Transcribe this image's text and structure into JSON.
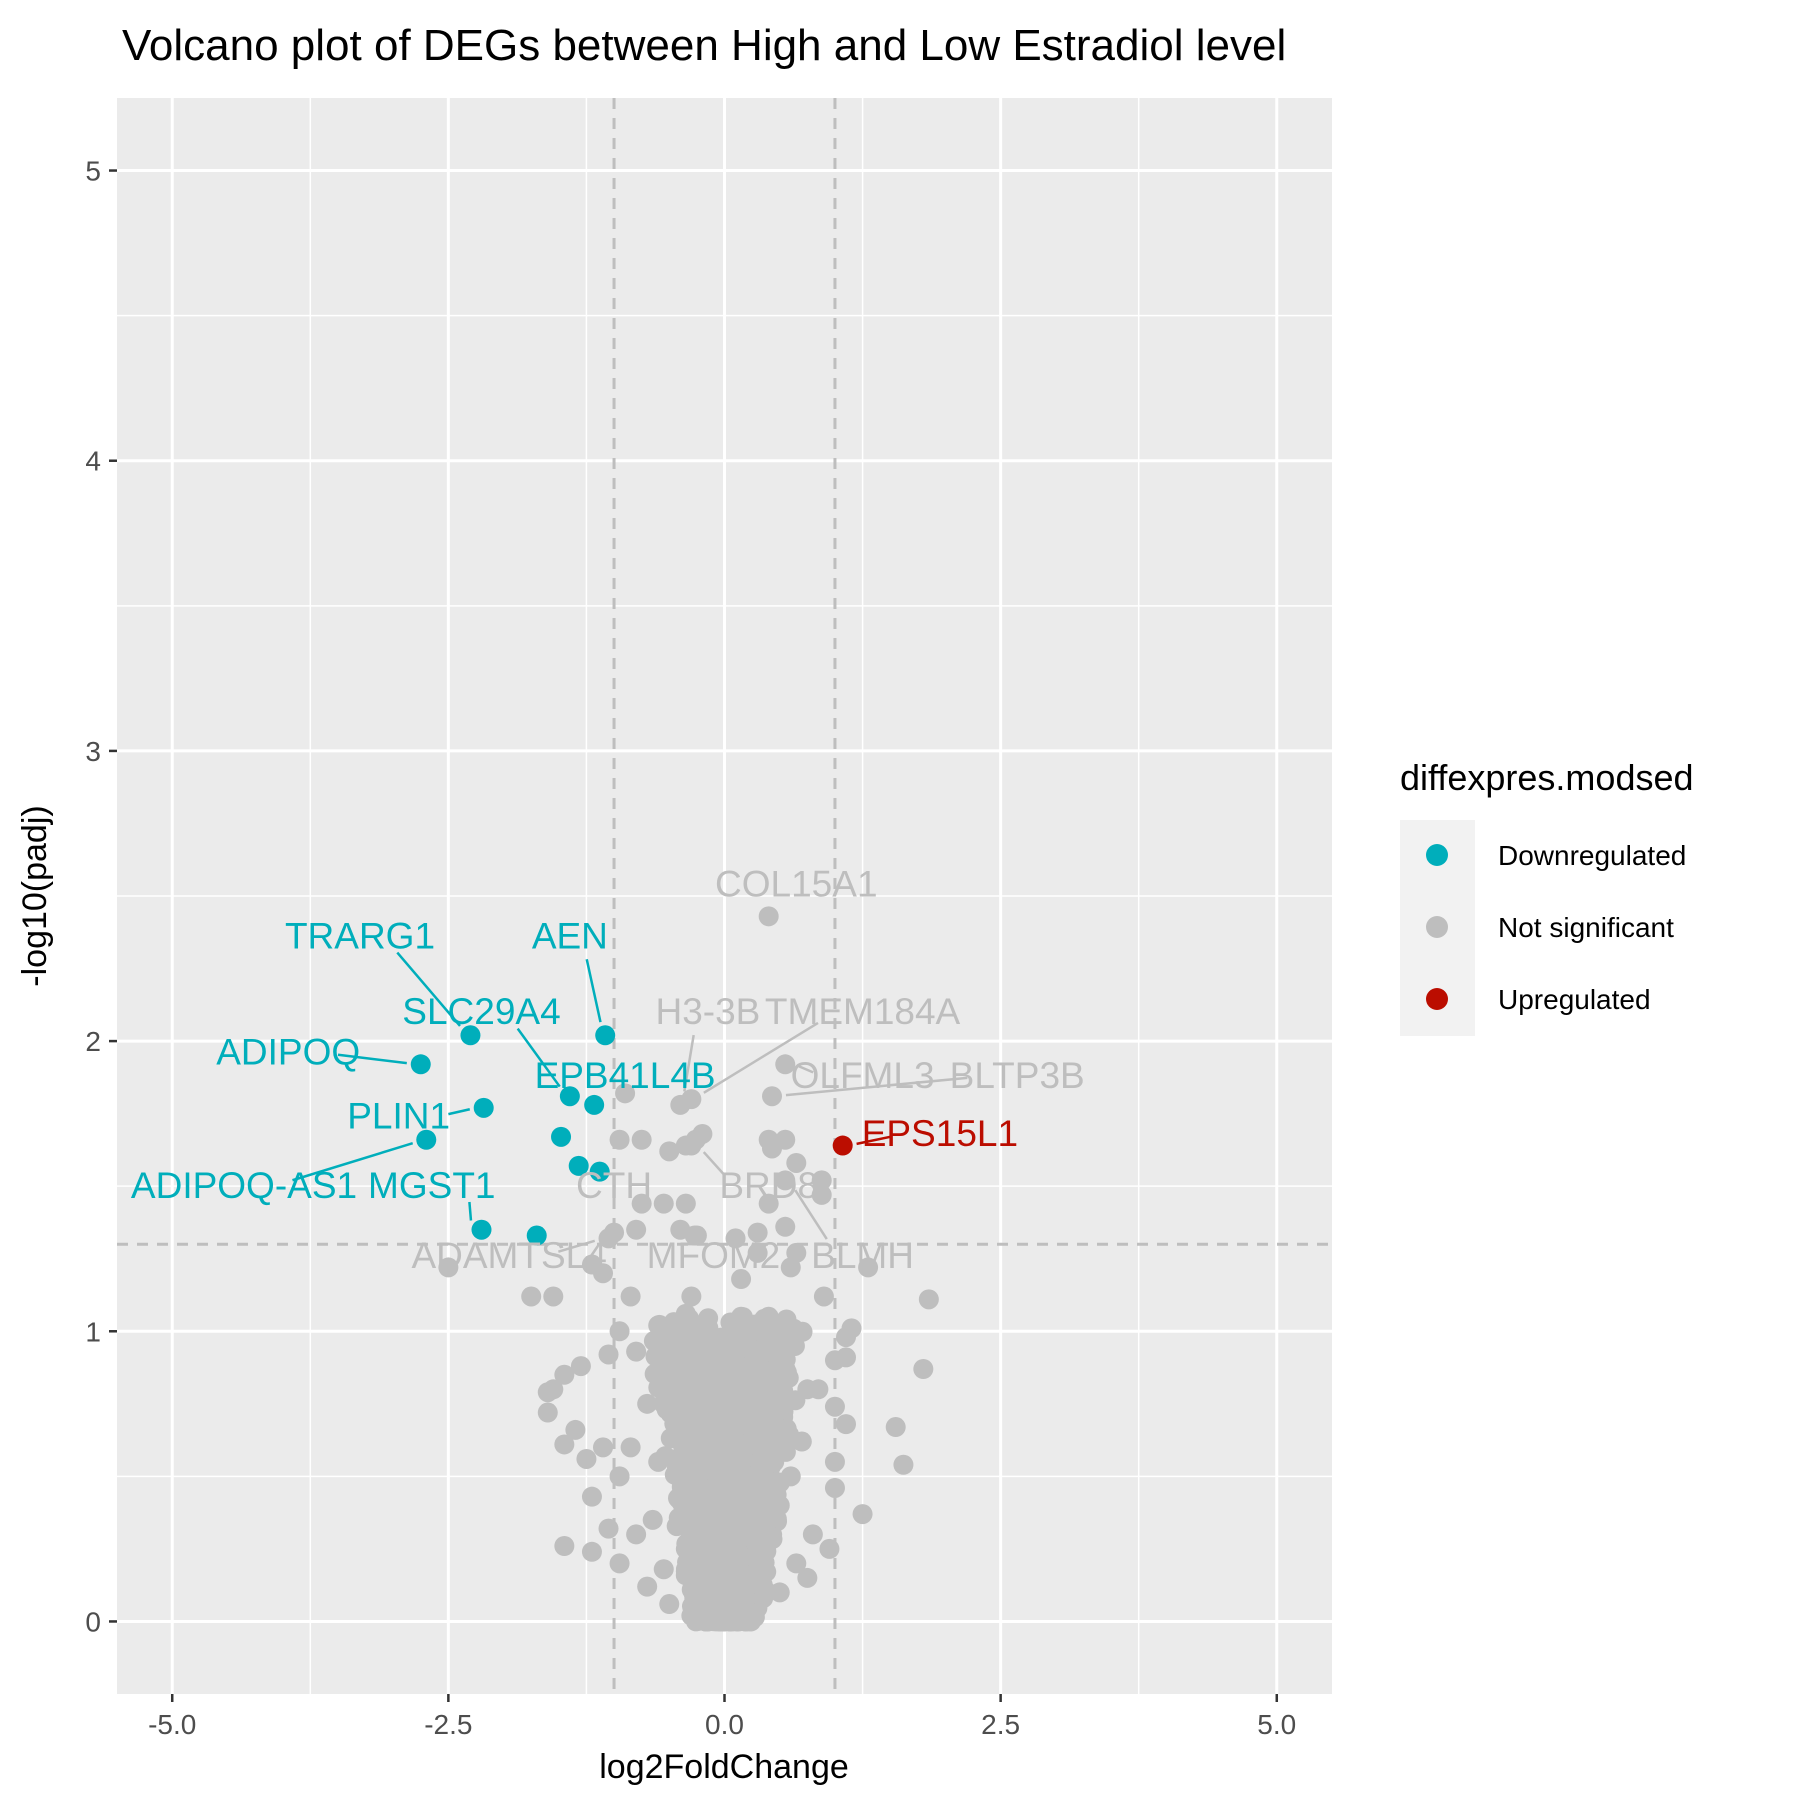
{
  "chart_data": {
    "type": "scatter",
    "title": "Volcano plot of DEGs between High and Low Estradiol level",
    "xlabel": "log2FoldChange",
    "ylabel": "-log10(padj)",
    "xlim": [
      -5.5,
      5.5
    ],
    "ylim": [
      -0.25,
      5.25
    ],
    "x_ticks": [
      -5.0,
      -2.5,
      0.0,
      2.5,
      5.0
    ],
    "x_tick_labels": [
      "-5.0",
      "-2.5",
      "0.0",
      "2.5",
      "5.0"
    ],
    "y_ticks": [
      0,
      1,
      2,
      3,
      4,
      5
    ],
    "y_tick_labels": [
      "0",
      "1",
      "2",
      "3",
      "4",
      "5"
    ],
    "grid": true,
    "background": "#ebebeb",
    "threshold_lines": {
      "x": [
        -1,
        1
      ],
      "y": [
        1.3
      ]
    },
    "legend": {
      "title": "diffexpres.modsed",
      "position": "right",
      "entries": [
        {
          "label": "Downregulated",
          "color": "#00aebb"
        },
        {
          "label": "Not significant",
          "color": "#bebebe"
        },
        {
          "label": "Upregulated",
          "color": "#bb0d00"
        }
      ]
    },
    "colors": {
      "Downregulated": "#00aebb",
      "Not significant": "#bebebe",
      "Upregulated": "#bb0d00"
    },
    "labeled_points": [
      {
        "gene": "TRARG1",
        "x": -2.3,
        "y": 2.02,
        "group": "Downregulated",
        "lx": -3.3,
        "ly": 2.36
      },
      {
        "gene": "AEN",
        "x": -1.08,
        "y": 2.02,
        "group": "Downregulated",
        "lx": -1.4,
        "ly": 2.36
      },
      {
        "gene": "ADIPOQ",
        "x": -2.75,
        "y": 1.92,
        "group": "Downregulated",
        "lx": -3.95,
        "ly": 1.96
      },
      {
        "gene": "SLC29A4",
        "x": -1.4,
        "y": 1.81,
        "group": "Downregulated",
        "lx": -2.2,
        "ly": 2.1
      },
      {
        "gene": "EPB41L4B",
        "x": -1.18,
        "y": 1.78,
        "group": "Downregulated",
        "lx": -0.9,
        "ly": 1.88
      },
      {
        "gene": "PLIN1",
        "x": -2.18,
        "y": 1.77,
        "group": "Downregulated",
        "lx": -2.95,
        "ly": 1.74
      },
      {
        "gene": "ADIPOQ-AS1",
        "x": -2.7,
        "y": 1.66,
        "group": "Downregulated",
        "lx": -4.35,
        "ly": 1.5
      },
      {
        "gene": "MGST1",
        "x": -2.2,
        "y": 1.35,
        "group": "Downregulated",
        "lx": -2.65,
        "ly": 1.5
      },
      {
        "gene": "COL15A1",
        "x": 0.4,
        "y": 2.43,
        "group": "Not significant",
        "lx": 0.65,
        "ly": 2.54
      },
      {
        "gene": "H3-3B",
        "x": -0.4,
        "y": 1.78,
        "group": "Not significant",
        "lx": -0.15,
        "ly": 2.1
      },
      {
        "gene": "TMEM184A",
        "x": -0.3,
        "y": 1.8,
        "group": "Not significant",
        "lx": 1.25,
        "ly": 2.1
      },
      {
        "gene": "OLFML3",
        "x": 0.55,
        "y": 1.92,
        "group": "Not significant",
        "lx": 1.25,
        "ly": 1.88
      },
      {
        "gene": "BLTP3B",
        "x": 0.43,
        "y": 1.81,
        "group": "Not significant",
        "lx": 2.65,
        "ly": 1.88
      },
      {
        "gene": "EPS15L1",
        "x": 1.07,
        "y": 1.64,
        "group": "Upregulated",
        "lx": 1.95,
        "ly": 1.68
      },
      {
        "gene": "CTH",
        "x": -0.95,
        "y": 1.66,
        "group": "Not significant",
        "lx": -1.0,
        "ly": 1.5
      },
      {
        "gene": "BRD8",
        "x": -0.3,
        "y": 1.64,
        "group": "Not significant",
        "lx": 0.4,
        "ly": 1.5
      },
      {
        "gene": "ADAMTSL4",
        "x": -1.05,
        "y": 1.32,
        "group": "Not significant",
        "lx": -1.95,
        "ly": 1.26
      },
      {
        "gene": "MFOM2",
        "x": -0.27,
        "y": 1.33,
        "group": "Not significant",
        "lx": -0.1,
        "ly": 1.26
      },
      {
        "gene": "BLMH",
        "x": 0.55,
        "y": 1.52,
        "group": "Not significant",
        "lx": 1.25,
        "ly": 1.26
      }
    ],
    "other_significant_points": [
      {
        "x": -1.48,
        "y": 1.67,
        "group": "Downregulated"
      },
      {
        "x": -1.32,
        "y": 1.57,
        "group": "Downregulated"
      },
      {
        "x": -1.13,
        "y": 1.55,
        "group": "Downregulated"
      },
      {
        "x": -1.7,
        "y": 1.33,
        "group": "Downregulated"
      }
    ],
    "background_points": [
      [
        0.4,
        1.66
      ],
      [
        0.55,
        1.66
      ],
      [
        0.43,
        1.63
      ],
      [
        0.65,
        1.58
      ],
      [
        0.88,
        1.52
      ],
      [
        0.88,
        1.47
      ],
      [
        0.4,
        1.44
      ],
      [
        -0.2,
        1.68
      ],
      [
        -0.26,
        1.66
      ],
      [
        -0.5,
        1.62
      ],
      [
        -0.35,
        1.64
      ],
      [
        -0.9,
        1.82
      ],
      [
        -0.75,
        1.66
      ],
      [
        -0.55,
        1.44
      ],
      [
        -0.35,
        1.44
      ],
      [
        -0.75,
        1.44
      ],
      [
        -0.8,
        1.35
      ],
      [
        -0.4,
        1.35
      ],
      [
        -0.25,
        1.33
      ],
      [
        0.1,
        1.32
      ],
      [
        0.3,
        1.34
      ],
      [
        0.55,
        1.36
      ],
      [
        -1.0,
        1.34
      ],
      [
        0.65,
        1.27
      ],
      [
        0.3,
        1.27
      ],
      [
        0.15,
        1.18
      ],
      [
        0.6,
        1.22
      ],
      [
        0.9,
        1.12
      ],
      [
        1.3,
        1.22
      ],
      [
        1.85,
        1.11
      ],
      [
        1.15,
        1.01
      ],
      [
        1.1,
        0.98
      ],
      [
        1.1,
        0.91
      ],
      [
        1.8,
        0.87
      ],
      [
        1.0,
        0.9
      ],
      [
        1.55,
        0.67
      ],
      [
        1.62,
        0.54
      ],
      [
        1.25,
        0.37
      ],
      [
        1.0,
        0.55
      ],
      [
        1.0,
        0.46
      ],
      [
        0.95,
        0.25
      ],
      [
        0.85,
        0.8
      ],
      [
        1.0,
        0.74
      ],
      [
        1.1,
        0.68
      ],
      [
        0.55,
        0.6
      ],
      [
        0.45,
        0.4
      ],
      [
        0.4,
        0.3
      ],
      [
        0.65,
        0.2
      ],
      [
        -2.5,
        1.22
      ],
      [
        -1.75,
        1.12
      ],
      [
        -1.55,
        1.12
      ],
      [
        -1.2,
        1.23
      ],
      [
        -1.1,
        1.2
      ],
      [
        -0.85,
        1.12
      ],
      [
        -0.3,
        1.12
      ],
      [
        -0.35,
        1.06
      ],
      [
        -0.6,
        1.02
      ],
      [
        -0.95,
        1.0
      ],
      [
        -1.45,
        0.85
      ],
      [
        -1.6,
        0.79
      ],
      [
        -1.6,
        0.72
      ],
      [
        -1.55,
        0.8
      ],
      [
        -1.3,
        0.88
      ],
      [
        -1.05,
        0.92
      ],
      [
        -0.8,
        0.93
      ],
      [
        -1.45,
        0.61
      ],
      [
        -1.35,
        0.66
      ],
      [
        -1.25,
        0.56
      ],
      [
        -1.1,
        0.6
      ],
      [
        -1.2,
        0.43
      ],
      [
        -1.05,
        0.32
      ],
      [
        -1.45,
        0.26
      ],
      [
        -1.2,
        0.24
      ],
      [
        -0.95,
        0.2
      ],
      [
        -0.7,
        0.12
      ],
      [
        -0.5,
        0.06
      ],
      [
        -0.3,
        0.02
      ],
      [
        -0.15,
        0.0
      ],
      [
        0.0,
        0.0
      ],
      [
        0.12,
        0.02
      ],
      [
        0.25,
        0.05
      ],
      [
        0.35,
        0.08
      ],
      [
        0.5,
        0.1
      ],
      [
        -0.6,
        0.55
      ],
      [
        -0.4,
        0.5
      ],
      [
        -0.2,
        0.45
      ],
      [
        -0.1,
        0.35
      ],
      [
        0.1,
        0.3
      ],
      [
        0.2,
        0.5
      ],
      [
        0.3,
        0.65
      ],
      [
        0.35,
        0.85
      ],
      [
        0.2,
        0.95
      ],
      [
        0.15,
        1.05
      ],
      [
        -0.15,
        0.9
      ],
      [
        -0.45,
        0.85
      ],
      [
        -0.7,
        0.75
      ],
      [
        -0.85,
        0.6
      ],
      [
        -0.65,
        0.35
      ],
      [
        -0.35,
        0.25
      ],
      [
        -0.1,
        0.15
      ],
      [
        0.1,
        0.12
      ],
      [
        0.3,
        0.18
      ],
      [
        0.5,
        0.4
      ],
      [
        0.6,
        0.5
      ],
      [
        0.7,
        0.62
      ],
      [
        0.75,
        0.8
      ],
      [
        0.6,
        0.95
      ],
      [
        0.4,
        1.05
      ],
      [
        0.25,
        0.78
      ],
      [
        -0.05,
        0.6
      ],
      [
        -0.25,
        0.68
      ],
      [
        -0.5,
        0.95
      ],
      [
        -0.95,
        0.5
      ],
      [
        -0.8,
        0.3
      ],
      [
        0.8,
        0.3
      ],
      [
        0.75,
        0.15
      ],
      [
        -0.55,
        0.18
      ],
      [
        -0.25,
        0.1
      ],
      [
        0.05,
        0.05
      ],
      [
        0.45,
        0.55
      ]
    ]
  }
}
